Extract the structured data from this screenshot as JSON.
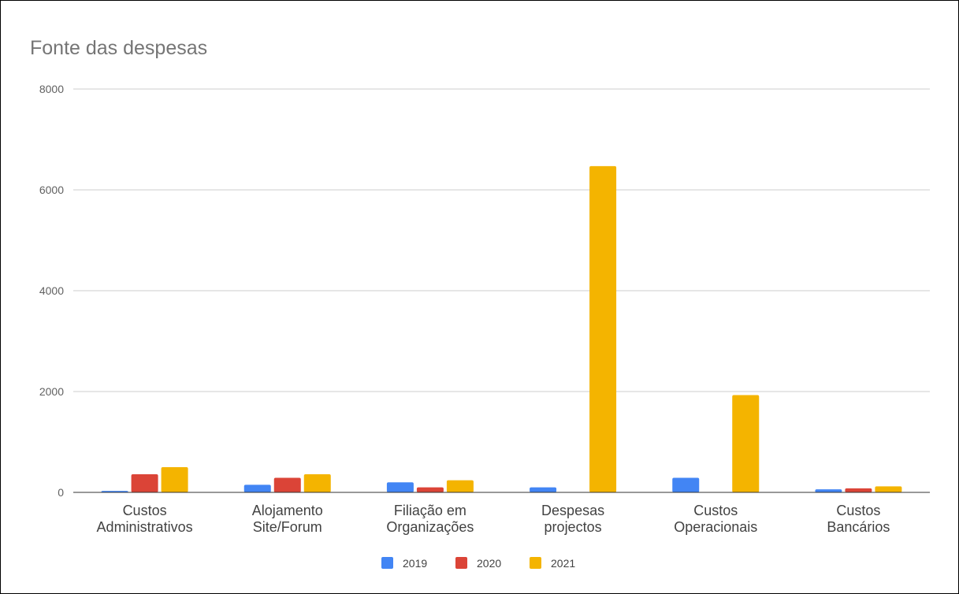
{
  "chart_data": {
    "type": "bar",
    "title": "Fonte das despesas",
    "xlabel": "",
    "ylabel": "",
    "categories": [
      [
        "Custos",
        "Administrativos"
      ],
      [
        "Alojamento",
        "Site/Forum"
      ],
      [
        "Filiação em",
        "Organizações"
      ],
      [
        "Despesas",
        "projectos"
      ],
      [
        "Custos",
        "Operacionais"
      ],
      [
        "Custos",
        "Bancários"
      ]
    ],
    "series": [
      {
        "name": "2019",
        "color": "#4285f4",
        "values": [
          30,
          150,
          200,
          100,
          290,
          60
        ]
      },
      {
        "name": "2020",
        "color": "#db4437",
        "values": [
          360,
          290,
          100,
          0,
          0,
          80
        ]
      },
      {
        "name": "2021",
        "color": "#f4b400",
        "values": [
          500,
          360,
          240,
          6470,
          1930,
          120
        ]
      }
    ],
    "ylim": [
      0,
      8000
    ],
    "yticks": [
      0,
      2000,
      4000,
      6000,
      8000
    ],
    "grid": true,
    "legend_position": "bottom"
  }
}
